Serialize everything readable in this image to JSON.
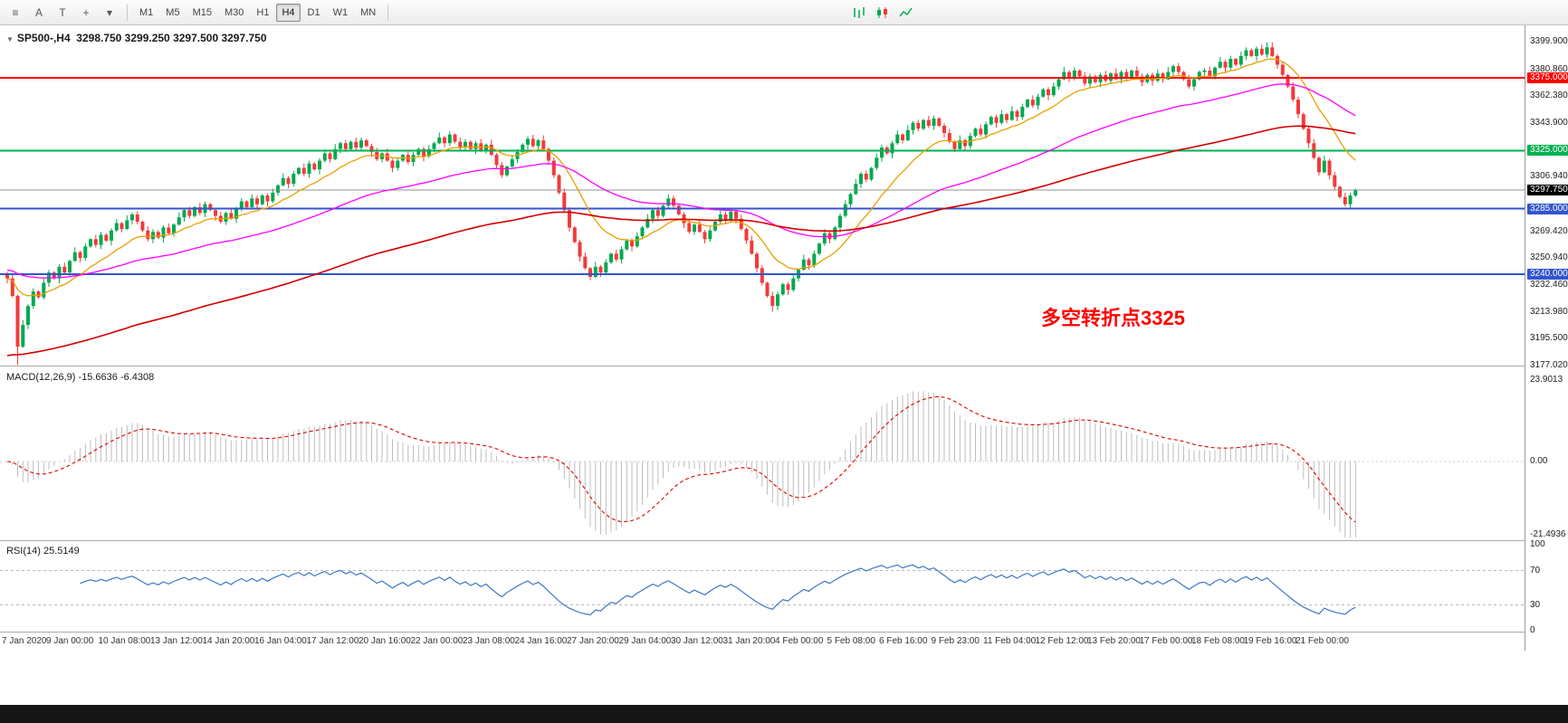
{
  "toolbar": {
    "icons": [
      {
        "name": "charts-menu-icon",
        "glyph": "≡"
      },
      {
        "name": "text-label-tool-icon",
        "glyph": "A"
      },
      {
        "name": "text-tool-icon",
        "glyph": "T"
      },
      {
        "name": "crosshair-tool-icon",
        "glyph": "+"
      },
      {
        "name": "tools-dropdown-icon",
        "glyph": "▾"
      }
    ],
    "timeframes": [
      "M1",
      "M5",
      "M15",
      "M30",
      "H1",
      "H4",
      "D1",
      "W1",
      "MN"
    ],
    "active_timeframe": "H4"
  },
  "chart": {
    "dropdown_glyph": "▼",
    "symbol_period": "SP500-,H4",
    "ohlc": "3298.750 3299.250 3297.500 3297.750",
    "annotation": "多空转折点3325",
    "annotation_color": "#FF0000"
  },
  "colors": {
    "up": "#00A94F",
    "down": "#F23A3A",
    "macd_hist": "#BDBDBD",
    "macd_signal": "#DD0000",
    "rsi_line": "#3C78C8",
    "current_line": "#909090",
    "current_box": "#000000"
  },
  "levels": [
    {
      "price": 3375.0,
      "label": "3375.000",
      "color": "#FF0000",
      "width": 2
    },
    {
      "price": 3325.0,
      "label": "3325.000",
      "color": "#00B050",
      "width": 2
    },
    {
      "price": 3285.0,
      "label": "3285.000",
      "color": "#3355CC",
      "width": 2
    },
    {
      "price": 3240.0,
      "label": "3240.000",
      "color": "#3355CC",
      "width": 2
    }
  ],
  "current_price": {
    "value": 3297.75,
    "label": "3297.750"
  },
  "price_axis": {
    "plain": [
      {
        "text": "3399.900",
        "price": 3399.9
      },
      {
        "text": "3380.860",
        "price": 3380.86
      },
      {
        "text": "3362.380",
        "price": 3362.38
      },
      {
        "text": "3343.900",
        "price": 3343.9
      },
      {
        "text": "3306.940",
        "price": 3306.94
      },
      {
        "text": "3269.420",
        "price": 3269.42
      },
      {
        "text": "3250.940",
        "price": 3250.94
      },
      {
        "text": "3232.460",
        "price": 3232.46
      },
      {
        "text": "3213.980",
        "price": 3213.98
      },
      {
        "text": "3195.500",
        "price": 3195.5
      },
      {
        "text": "3177.020",
        "price": 3177.02
      }
    ]
  },
  "macd": {
    "label": "MACD(12,26,9) -15.6636 -6.4308",
    "max": 23.9013,
    "min": -21.4936,
    "axis": [
      {
        "text": "23.9013",
        "value": 23.9013
      },
      {
        "text": "0.00",
        "value": 0
      },
      {
        "text": "-21.4936",
        "value": -21.4936
      }
    ]
  },
  "rsi": {
    "label": "RSI(14) 25.5149",
    "levels": [
      70,
      30
    ],
    "axis": [
      {
        "text": "100",
        "value": 100
      },
      {
        "text": "70",
        "value": 70
      },
      {
        "text": "30",
        "value": 30
      },
      {
        "text": "0",
        "value": 0
      }
    ]
  },
  "time_axis": [
    "7 Jan 2020",
    "9 Jan 00:00",
    "10 Jan 08:00",
    "13 Jan 12:00",
    "14 Jan 20:00",
    "16 Jan 04:00",
    "17 Jan 12:00",
    "20 Jan 16:00",
    "22 Jan 00:00",
    "23 Jan 08:00",
    "24 Jan 16:00",
    "27 Jan 20:00",
    "29 Jan 04:00",
    "30 Jan 12:00",
    "31 Jan 20:00",
    "4 Feb 00:00",
    "5 Feb 08:00",
    "6 Feb 16:00",
    "9 Feb 23:00",
    "11 Feb 04:00",
    "12 Feb 12:00",
    "13 Feb 20:00",
    "17 Feb 00:00",
    "18 Feb 08:00",
    "19 Feb 16:00",
    "21 Feb 00:00"
  ],
  "chart_data": {
    "type": "candlestick+indicators",
    "symbol": "SP500-",
    "timeframe": "H4",
    "price_range": {
      "min": 3177.02,
      "max": 3399.9
    },
    "first_open": 3240,
    "closes": [
      3237,
      3225,
      3190,
      3205,
      3218,
      3228,
      3224,
      3234,
      3241,
      3237,
      3245,
      3241,
      3249,
      3255,
      3251,
      3259,
      3264,
      3260,
      3267,
      3263,
      3270,
      3275,
      3271,
      3277,
      3281,
      3276,
      3270,
      3264,
      3269,
      3265,
      3272,
      3268,
      3274,
      3279,
      3284,
      3280,
      3286,
      3282,
      3288,
      3284,
      3280,
      3276,
      3282,
      3278,
      3285,
      3290,
      3286,
      3292,
      3288,
      3294,
      3290,
      3296,
      3301,
      3306,
      3302,
      3309,
      3313,
      3309,
      3316,
      3312,
      3318,
      3323,
      3319,
      3326,
      3330,
      3326,
      3331,
      3327,
      3332,
      3328,
      3324,
      3319,
      3323,
      3318,
      3313,
      3318,
      3322,
      3317,
      3322,
      3326,
      3321,
      3326,
      3330,
      3334,
      3330,
      3336,
      3331,
      3327,
      3331,
      3326,
      3330,
      3325,
      3329,
      3322,
      3315,
      3308,
      3314,
      3319,
      3324,
      3329,
      3333,
      3328,
      3332,
      3326,
      3318,
      3308,
      3296,
      3284,
      3272,
      3262,
      3252,
      3244,
      3238,
      3245,
      3241,
      3248,
      3254,
      3250,
      3257,
      3263,
      3259,
      3266,
      3272,
      3278,
      3284,
      3280,
      3287,
      3292,
      3287,
      3281,
      3275,
      3269,
      3274,
      3269,
      3264,
      3270,
      3276,
      3281,
      3277,
      3283,
      3278,
      3271,
      3263,
      3254,
      3244,
      3234,
      3225,
      3218,
      3226,
      3233,
      3229,
      3237,
      3243,
      3250,
      3246,
      3254,
      3261,
      3268,
      3264,
      3272,
      3280,
      3288,
      3295,
      3302,
      3309,
      3305,
      3313,
      3320,
      3327,
      3323,
      3330,
      3336,
      3332,
      3339,
      3344,
      3340,
      3346,
      3342,
      3347,
      3342,
      3337,
      3331,
      3326,
      3332,
      3328,
      3335,
      3340,
      3336,
      3343,
      3348,
      3344,
      3350,
      3346,
      3352,
      3348,
      3355,
      3360,
      3356,
      3362,
      3367,
      3363,
      3369,
      3374,
      3379,
      3375,
      3380,
      3376,
      3371,
      3376,
      3372,
      3377,
      3373,
      3378,
      3374,
      3379,
      3375,
      3380,
      3376,
      3372,
      3377,
      3373,
      3378,
      3374,
      3379,
      3383,
      3379,
      3374,
      3369,
      3374,
      3379,
      3380,
      3376,
      3382,
      3386,
      3382,
      3388,
      3384,
      3390,
      3394,
      3390,
      3395,
      3391,
      3396,
      3390,
      3384,
      3377,
      3369,
      3360,
      3350,
      3340,
      3330,
      3320,
      3310,
      3318,
      3308,
      3300,
      3293,
      3288,
      3294,
      3297.75
    ],
    "wick_pattern": [
      1.6,
      2.8,
      0.9,
      3.4,
      1.2,
      2.2,
      0.7,
      2.9,
      1.9,
      1.1
    ],
    "wick_overrides": {
      "2": {
        "low": 3177.5
      },
      "147": {
        "low": 3214.2
      },
      "242": {
        "high": 3399.4
      }
    },
    "mas": [
      {
        "period": 14,
        "seed": 3237,
        "color": "#E8A000",
        "width": 1.3
      },
      {
        "period": 55,
        "seed": 3243,
        "color": "#FF00FF",
        "width": 1.3
      },
      {
        "period": 130,
        "seed": 3183,
        "color": "#D40000",
        "width": 1.6
      }
    ],
    "macd_params": [
      12,
      26,
      9
    ],
    "rsi_period": 14
  }
}
